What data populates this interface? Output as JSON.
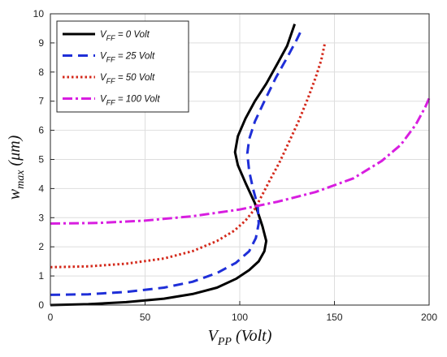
{
  "chart_data": {
    "type": "line",
    "title": "",
    "xlabel": {
      "main": "V",
      "sub": "PP",
      "unit": " (Volt)"
    },
    "ylabel": {
      "main": "w",
      "sub": "max",
      "unit": " (μm)"
    },
    "xlim": [
      0,
      200
    ],
    "ylim": [
      0,
      10
    ],
    "xticks": [
      0,
      50,
      100,
      150,
      200
    ],
    "yticks": [
      0,
      1,
      2,
      3,
      4,
      5,
      6,
      7,
      8,
      9,
      10
    ],
    "grid": true,
    "legend_position": "top-left",
    "series": [
      {
        "name": "V_FF = 0 Volt",
        "legend": {
          "main": "V",
          "sub": "FF",
          "rest": " = 0 Volt"
        },
        "color": "#000000",
        "style": "solid",
        "points": [
          [
            0,
            0
          ],
          [
            20,
            0.03
          ],
          [
            40,
            0.1
          ],
          [
            60,
            0.22
          ],
          [
            75,
            0.38
          ],
          [
            88,
            0.6
          ],
          [
            98,
            0.9
          ],
          [
            105,
            1.2
          ],
          [
            110,
            1.5
          ],
          [
            113,
            1.85
          ],
          [
            114,
            2.2
          ],
          [
            112,
            2.7
          ],
          [
            108,
            3.5
          ],
          [
            103,
            4.2
          ],
          [
            99,
            4.8
          ],
          [
            97.5,
            5.25
          ],
          [
            99,
            5.8
          ],
          [
            103,
            6.4
          ],
          [
            108,
            7.0
          ],
          [
            114,
            7.6
          ],
          [
            120,
            8.3
          ],
          [
            125,
            8.9
          ],
          [
            129,
            9.65
          ]
        ]
      },
      {
        "name": "V_FF = 25 Volt",
        "legend": {
          "main": "V",
          "sub": "FF",
          "rest": " = 25 Volt"
        },
        "color": "#1f2fd8",
        "style": "dashed",
        "points": [
          [
            0,
            0.35
          ],
          [
            20,
            0.37
          ],
          [
            40,
            0.45
          ],
          [
            60,
            0.6
          ],
          [
            75,
            0.8
          ],
          [
            88,
            1.1
          ],
          [
            98,
            1.45
          ],
          [
            105,
            1.85
          ],
          [
            108.5,
            2.3
          ],
          [
            110,
            2.8
          ],
          [
            109.5,
            3.4
          ],
          [
            107,
            4.0
          ],
          [
            105,
            4.6
          ],
          [
            104,
            5.2
          ],
          [
            105,
            5.7
          ],
          [
            108,
            6.3
          ],
          [
            113,
            7.0
          ],
          [
            119,
            7.8
          ],
          [
            125,
            8.5
          ],
          [
            130,
            9.1
          ],
          [
            133,
            9.5
          ]
        ]
      },
      {
        "name": "V_FF = 50 Volt",
        "legend": {
          "main": "V",
          "sub": "FF",
          "rest": " = 50 Volt"
        },
        "color": "#d42a1c",
        "style": "dotted",
        "points": [
          [
            0,
            1.3
          ],
          [
            20,
            1.33
          ],
          [
            40,
            1.42
          ],
          [
            60,
            1.6
          ],
          [
            75,
            1.85
          ],
          [
            88,
            2.2
          ],
          [
            97,
            2.55
          ],
          [
            103,
            2.9
          ],
          [
            108,
            3.3
          ],
          [
            112,
            3.8
          ],
          [
            116,
            4.3
          ],
          [
            121,
            4.9
          ],
          [
            126,
            5.6
          ],
          [
            131,
            6.3
          ],
          [
            136,
            7.1
          ],
          [
            140,
            7.8
          ],
          [
            143,
            8.4
          ],
          [
            145,
            9.0
          ]
        ]
      },
      {
        "name": "V_FF = 100 Volt",
        "legend": {
          "main": "V",
          "sub": "FF",
          "rest": " = 100 Volt"
        },
        "color": "#d81ee0",
        "style": "dashdot",
        "points": [
          [
            0,
            2.8
          ],
          [
            25,
            2.82
          ],
          [
            50,
            2.9
          ],
          [
            75,
            3.05
          ],
          [
            100,
            3.28
          ],
          [
            120,
            3.55
          ],
          [
            140,
            3.88
          ],
          [
            160,
            4.35
          ],
          [
            175,
            4.95
          ],
          [
            185,
            5.5
          ],
          [
            193,
            6.2
          ],
          [
            198,
            6.8
          ],
          [
            200,
            7.1
          ]
        ]
      }
    ]
  }
}
